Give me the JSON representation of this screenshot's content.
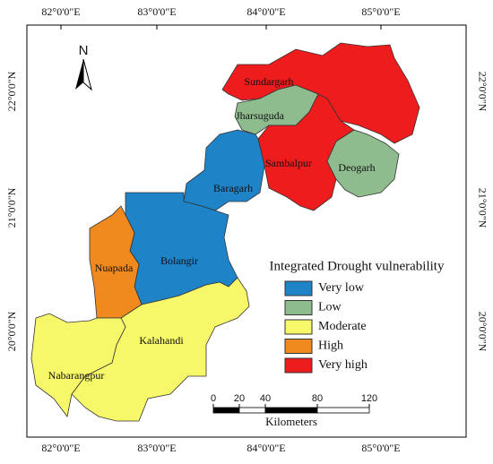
{
  "map": {
    "north": "N",
    "lon_labels": [
      "82°0'0\"E",
      "83°0'0\"E",
      "84°0'0\"E",
      "85°0'0\"E"
    ],
    "lat_labels": [
      "22°0'0\"N",
      "21°0'0\"N",
      "20°0'0\"N"
    ],
    "districts": [
      {
        "name": "Sundargarh",
        "color": "#ee1c1c"
      },
      {
        "name": "Jharsuguda",
        "color": "#8fbc8f"
      },
      {
        "name": "Sambalpur",
        "color": "#ee1c1c"
      },
      {
        "name": "Deogarh",
        "color": "#8fbc8f"
      },
      {
        "name": "Baragarh",
        "color": "#1f83c8"
      },
      {
        "name": "Bolangir",
        "color": "#1f83c8"
      },
      {
        "name": "Nuapada",
        "color": "#f08a1e"
      },
      {
        "name": "Kalahandi",
        "color": "#f7f76a"
      },
      {
        "name": "Nabarangpur",
        "color": "#f7f76a"
      }
    ],
    "legend": {
      "title": "Integrated Drought vulnerability",
      "items": [
        {
          "label": "Very low",
          "color": "#1f83c8"
        },
        {
          "label": "Low",
          "color": "#8fbc8f"
        },
        {
          "label": "Moderate",
          "color": "#f7f76a"
        },
        {
          "label": "High",
          "color": "#f08a1e"
        },
        {
          "label": "Very high",
          "color": "#ee1c1c"
        }
      ]
    },
    "scale_bar": {
      "ticks": [
        0,
        20,
        40,
        80,
        120
      ],
      "unit": "Kilometers"
    }
  }
}
